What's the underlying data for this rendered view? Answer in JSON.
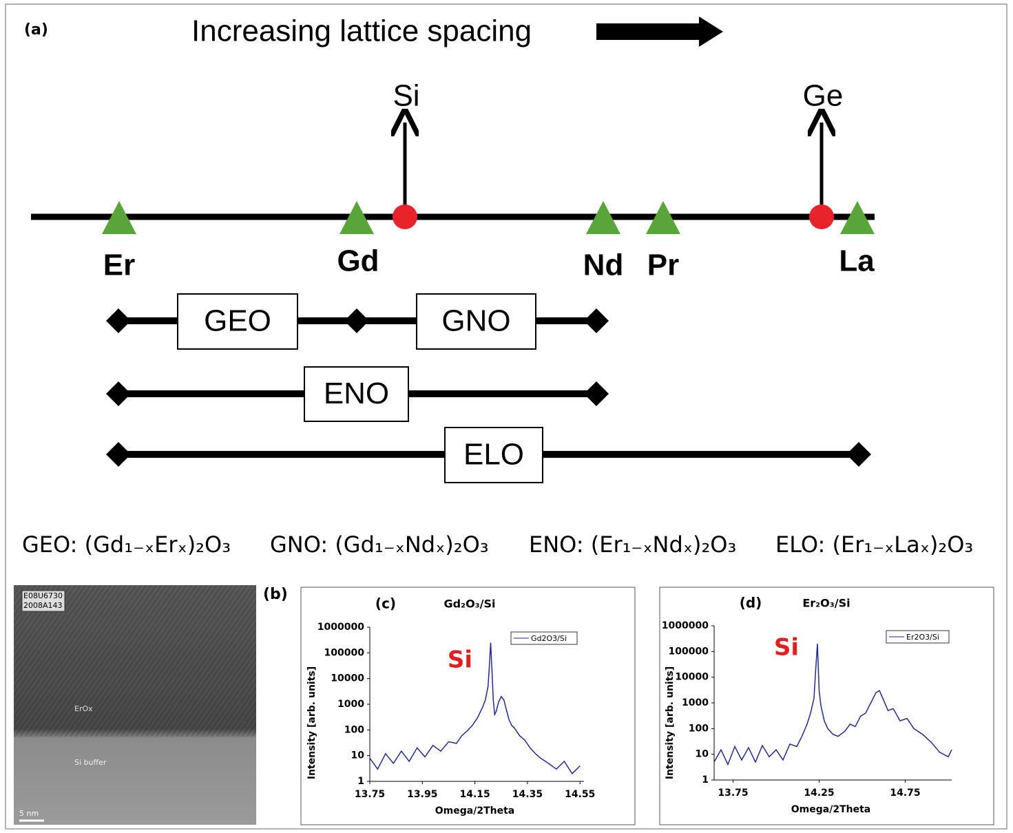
{
  "diagram": {
    "panel_label": "(a)",
    "title": "Increasing lattice spacing",
    "substrates": [
      "Si",
      "Ge"
    ],
    "elements": [
      "Er",
      "Gd",
      "Nd",
      "Pr",
      "La"
    ],
    "ranges": [
      "GEO",
      "GNO",
      "ENO",
      "ELO"
    ],
    "legend": [
      "GEO: (Gd₁₋ₓErₓ)₂O₃",
      "GNO: (Gd₁₋ₓNdₓ)₂O₃",
      "ENO: (Er₁₋ₓNdₓ)₂O₃",
      "ELO: (Er₁₋ₓLaₓ)₂O₃"
    ]
  },
  "tem_image": {
    "panel_label": "(b)",
    "stamp": [
      "E08U6730",
      "2008A143"
    ],
    "layers": [
      "ErOx",
      "Si buffer"
    ],
    "scale_bar": "5 nm"
  },
  "chart_data": [
    {
      "type": "line",
      "panel_label": "(c)",
      "title": "Gd₂O₃/Si",
      "x_label": "Omega/2Theta",
      "y_label": "Intensity [arb. units]",
      "annotation": "Si",
      "annotation_color": "#e02020",
      "log_y": true,
      "xlim": [
        13.75,
        14.565
      ],
      "ylim": [
        1,
        1000000
      ],
      "xticks": [
        13.75,
        13.95,
        14.15,
        14.35,
        14.55
      ],
      "yticks": [
        1,
        10,
        100,
        1000,
        10000,
        100000,
        1000000
      ],
      "series": [
        {
          "name": "Gd2O3/Si",
          "color": "#1f2a8c",
          "x": [
            13.75,
            13.78,
            13.81,
            13.84,
            13.87,
            13.9,
            13.93,
            13.96,
            13.99,
            14.02,
            14.05,
            14.08,
            14.1,
            14.12,
            14.14,
            14.16,
            14.18,
            14.19,
            14.2,
            14.205,
            14.21,
            14.215,
            14.22,
            14.225,
            14.23,
            14.24,
            14.25,
            14.26,
            14.27,
            14.28,
            14.29,
            14.3,
            14.32,
            14.34,
            14.36,
            14.38,
            14.4,
            14.43,
            14.46,
            14.49,
            14.52,
            14.55
          ],
          "values": [
            8,
            3,
            12,
            5,
            15,
            6,
            20,
            9,
            25,
            15,
            35,
            30,
            60,
            90,
            150,
            300,
            800,
            1500,
            5000,
            30000,
            250000,
            20000,
            1500,
            400,
            500,
            1200,
            2000,
            1500,
            600,
            250,
            150,
            120,
            60,
            40,
            20,
            12,
            8,
            5,
            3,
            6,
            2,
            4
          ]
        }
      ]
    },
    {
      "type": "line",
      "panel_label": "(d)",
      "title": "Er₂O₃/Si",
      "x_label": "Omega/2Theta",
      "y_label": "Intensity [arb. units]",
      "annotation": "Si",
      "annotation_color": "#e02020",
      "log_y": true,
      "xlim": [
        13.64,
        15.02
      ],
      "ylim": [
        1,
        1000000
      ],
      "xticks": [
        13.75,
        14.25,
        14.75
      ],
      "yticks": [
        1,
        10,
        100,
        1000,
        10000,
        100000,
        1000000
      ],
      "series": [
        {
          "name": "Er2O3/Si",
          "color": "#1f2a8c",
          "x": [
            13.64,
            13.68,
            13.72,
            13.76,
            13.8,
            13.84,
            13.88,
            13.92,
            13.96,
            14.0,
            14.04,
            14.08,
            14.12,
            14.15,
            14.18,
            14.2,
            14.22,
            14.23,
            14.24,
            14.25,
            14.26,
            14.28,
            14.3,
            14.33,
            14.36,
            14.4,
            14.43,
            14.46,
            14.49,
            14.52,
            14.55,
            14.58,
            14.6,
            14.62,
            14.65,
            14.68,
            14.72,
            14.76,
            14.8,
            14.85,
            14.9,
            14.95,
            15.0,
            15.02
          ],
          "values": [
            5,
            15,
            4,
            20,
            6,
            18,
            5,
            22,
            8,
            15,
            6,
            25,
            20,
            50,
            150,
            400,
            1500,
            20000,
            200000,
            3000,
            800,
            200,
            100,
            60,
            50,
            80,
            150,
            120,
            300,
            400,
            1000,
            2500,
            3000,
            1500,
            500,
            600,
            200,
            250,
            100,
            60,
            30,
            12,
            8,
            15
          ]
        }
      ]
    }
  ]
}
